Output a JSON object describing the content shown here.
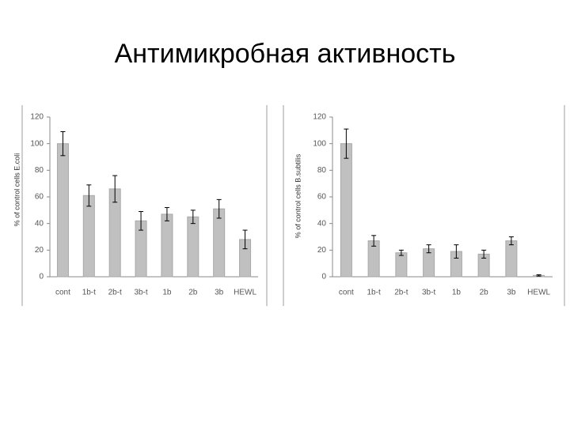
{
  "title": "Антимикробная активность",
  "chart_data": [
    {
      "type": "bar",
      "y_label": "% of control cells E.coli",
      "categories": [
        "cont",
        "1b-t",
        "2b-t",
        "3b-t",
        "1b",
        "2b",
        "3b",
        "HEWL"
      ],
      "values": [
        100,
        61,
        66,
        42,
        47,
        45,
        51,
        28
      ],
      "errors": [
        9,
        8,
        10,
        7,
        5,
        5,
        7,
        7
      ],
      "color": "#c0c0c0",
      "ylim": [
        0,
        120
      ],
      "yticks": [
        0,
        20,
        40,
        60,
        80,
        100,
        120
      ]
    },
    {
      "type": "bar",
      "y_label": "% of control cells B.subtilis",
      "categories": [
        "cont",
        "1b-t",
        "2b-t",
        "3b-t",
        "1b",
        "2b",
        "3b",
        "HEWL"
      ],
      "values": [
        100,
        27,
        18,
        21,
        19,
        17,
        27,
        1
      ],
      "errors": [
        11,
        4,
        2,
        3,
        5,
        3,
        3,
        0.5
      ],
      "color": "#c0c0c0",
      "ylim": [
        0,
        120
      ],
      "yticks": [
        0,
        20,
        40,
        60,
        80,
        100,
        120
      ]
    }
  ]
}
